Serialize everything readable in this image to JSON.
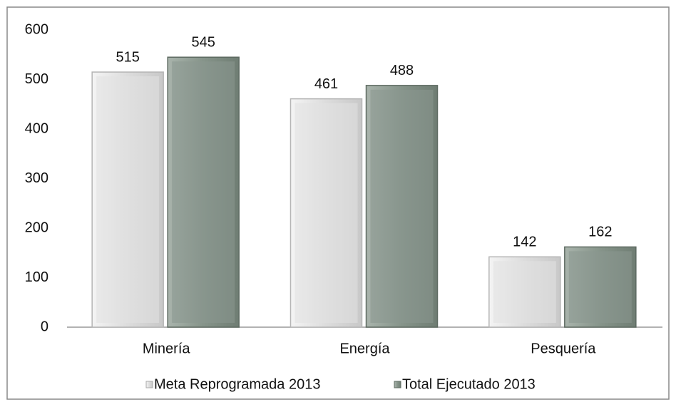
{
  "chart_data": {
    "type": "bar",
    "categories": [
      "Minería",
      "Energía",
      "Pesquería"
    ],
    "series": [
      {
        "name": "Meta Reprogramada 2013",
        "color": "#e2e2e2",
        "values": [
          515,
          461,
          142
        ]
      },
      {
        "name": "Total Ejecutado 2013",
        "color": "#8b988f",
        "values": [
          545,
          488,
          162
        ]
      }
    ],
    "ylim": [
      0,
      600
    ],
    "yticks": [
      0,
      100,
      200,
      300,
      400,
      500,
      600
    ],
    "grid": false,
    "legend": "bottom"
  }
}
